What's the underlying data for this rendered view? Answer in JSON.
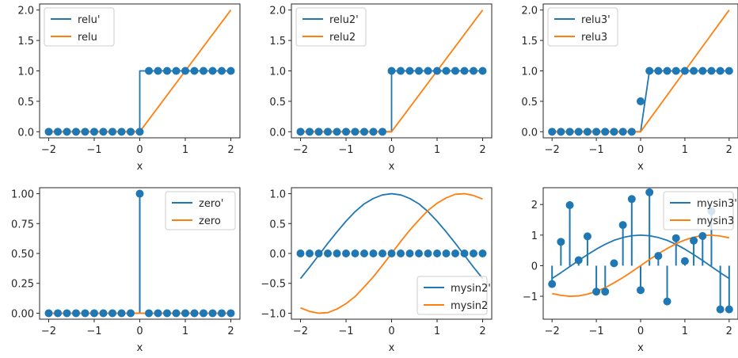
{
  "colors": {
    "derivative": "#1f77b4",
    "function": "#ff7f0e",
    "axis": "#262626"
  },
  "chart_data": [
    {
      "type": "line",
      "panel": "top-left",
      "xlabel": "x",
      "xlim": [
        -2.2,
        2.2
      ],
      "ylim": [
        -0.1,
        2.1
      ],
      "xticks": [
        -2,
        -1,
        0,
        1,
        2
      ],
      "xtick_labels": [
        "−2",
        "−1",
        "0",
        "1",
        "2"
      ],
      "yticks": [
        0.0,
        0.5,
        1.0,
        1.5,
        2.0
      ],
      "ytick_labels": [
        "0.0",
        "0.5",
        "1.0",
        "1.5",
        "2.0"
      ],
      "legend": {
        "loc": "upper-left",
        "entries": [
          {
            "label": "relu'",
            "color": "#1f77b4"
          },
          {
            "label": "relu",
            "color": "#ff7f0e"
          }
        ]
      },
      "series": [
        {
          "name": "relu'",
          "kind": "step",
          "color": "#1f77b4",
          "x": [
            -2,
            0,
            0,
            2
          ],
          "y": [
            0,
            0,
            1,
            1
          ]
        },
        {
          "name": "relu",
          "kind": "line",
          "color": "#ff7f0e",
          "x": [
            -2,
            0,
            2
          ],
          "y": [
            0,
            0,
            2
          ]
        }
      ],
      "points": {
        "color": "#1f77b4",
        "stems": false,
        "x": [
          -2.0,
          -1.8,
          -1.6,
          -1.4,
          -1.2,
          -1.0,
          -0.8,
          -0.6,
          -0.4,
          -0.2,
          0.0,
          0.2,
          0.4,
          0.6,
          0.8,
          1.0,
          1.2,
          1.4,
          1.6,
          1.8,
          2.0
        ],
        "y": [
          0,
          0,
          0,
          0,
          0,
          0,
          0,
          0,
          0,
          0,
          0,
          1,
          1,
          1,
          1,
          1,
          1,
          1,
          1,
          1,
          1
        ]
      }
    },
    {
      "type": "line",
      "panel": "top-middle",
      "xlabel": "x",
      "xlim": [
        -2.2,
        2.2
      ],
      "ylim": [
        -0.1,
        2.1
      ],
      "xticks": [
        -2,
        -1,
        0,
        1,
        2
      ],
      "xtick_labels": [
        "−2",
        "−1",
        "0",
        "1",
        "2"
      ],
      "yticks": [
        0.0,
        0.5,
        1.0,
        1.5,
        2.0
      ],
      "ytick_labels": [
        "0.0",
        "0.5",
        "1.0",
        "1.5",
        "2.0"
      ],
      "legend": {
        "loc": "upper-left",
        "entries": [
          {
            "label": "relu2'",
            "color": "#1f77b4"
          },
          {
            "label": "relu2",
            "color": "#ff7f0e"
          }
        ]
      },
      "series": [
        {
          "name": "relu2'",
          "kind": "step",
          "color": "#1f77b4",
          "x": [
            -2,
            0,
            0,
            2
          ],
          "y": [
            0,
            0,
            1,
            1
          ]
        },
        {
          "name": "relu2",
          "kind": "line",
          "color": "#ff7f0e",
          "x": [
            -2,
            0,
            2
          ],
          "y": [
            0,
            0,
            2
          ]
        }
      ],
      "points": {
        "color": "#1f77b4",
        "stems": false,
        "x": [
          -2.0,
          -1.8,
          -1.6,
          -1.4,
          -1.2,
          -1.0,
          -0.8,
          -0.6,
          -0.4,
          -0.2,
          0.0,
          0.2,
          0.4,
          0.6,
          0.8,
          1.0,
          1.2,
          1.4,
          1.6,
          1.8,
          2.0
        ],
        "y": [
          0,
          0,
          0,
          0,
          0,
          0,
          0,
          0,
          0,
          0,
          1,
          1,
          1,
          1,
          1,
          1,
          1,
          1,
          1,
          1,
          1
        ]
      }
    },
    {
      "type": "line",
      "panel": "top-right",
      "xlabel": "x",
      "xlim": [
        -2.2,
        2.2
      ],
      "ylim": [
        -0.1,
        2.1
      ],
      "xticks": [
        -2,
        -1,
        0,
        1,
        2
      ],
      "xtick_labels": [
        "−2",
        "−1",
        "0",
        "1",
        "2"
      ],
      "yticks": [
        0.0,
        0.5,
        1.0,
        1.5,
        2.0
      ],
      "ytick_labels": [
        "0.0",
        "0.5",
        "1.0",
        "1.5",
        "2.0"
      ],
      "legend": {
        "loc": "upper-left",
        "entries": [
          {
            "label": "relu3'",
            "color": "#1f77b4"
          },
          {
            "label": "relu3",
            "color": "#ff7f0e"
          }
        ]
      },
      "series": [
        {
          "name": "relu3'",
          "kind": "step",
          "color": "#1f77b4",
          "x": [
            -2,
            0,
            0.2,
            2
          ],
          "y": [
            0,
            0,
            1,
            1
          ]
        },
        {
          "name": "relu3",
          "kind": "line",
          "color": "#ff7f0e",
          "x": [
            -2,
            0,
            2
          ],
          "y": [
            0,
            0,
            2
          ]
        }
      ],
      "points": {
        "color": "#1f77b4",
        "stems": false,
        "x": [
          -2.0,
          -1.8,
          -1.6,
          -1.4,
          -1.2,
          -1.0,
          -0.8,
          -0.6,
          -0.4,
          -0.2,
          0.0,
          0.2,
          0.4,
          0.6,
          0.8,
          1.0,
          1.2,
          1.4,
          1.6,
          1.8,
          2.0
        ],
        "y": [
          0,
          0,
          0,
          0,
          0,
          0,
          0,
          0,
          0,
          0,
          0.5,
          1,
          1,
          1,
          1,
          1,
          1,
          1,
          1,
          1,
          1
        ]
      }
    },
    {
      "type": "line",
      "panel": "bottom-left",
      "xlabel": "x",
      "xlim": [
        -2.2,
        2.2
      ],
      "ylim": [
        -0.05,
        1.05
      ],
      "xticks": [
        -2,
        -1,
        0,
        1,
        2
      ],
      "xtick_labels": [
        "−2",
        "−1",
        "0",
        "1",
        "2"
      ],
      "yticks": [
        0.0,
        0.25,
        0.5,
        0.75,
        1.0
      ],
      "ytick_labels": [
        "0.00",
        "0.25",
        "0.50",
        "0.75",
        "1.00"
      ],
      "legend": {
        "loc": "upper-right",
        "entries": [
          {
            "label": "zero'",
            "color": "#1f77b4"
          },
          {
            "label": "zero",
            "color": "#ff7f0e"
          }
        ]
      },
      "series": [
        {
          "name": "zero'",
          "kind": "line",
          "color": "#1f77b4",
          "x": [
            -2,
            0,
            0,
            0,
            2
          ],
          "y": [
            0,
            0,
            1,
            0,
            0
          ]
        },
        {
          "name": "zero",
          "kind": "line",
          "color": "#ff7f0e",
          "x": [
            -2,
            2
          ],
          "y": [
            0,
            0
          ]
        }
      ],
      "points": {
        "color": "#1f77b4",
        "stems": true,
        "x": [
          -2.0,
          -1.8,
          -1.6,
          -1.4,
          -1.2,
          -1.0,
          -0.8,
          -0.6,
          -0.4,
          -0.2,
          0.0,
          0.2,
          0.4,
          0.6,
          0.8,
          1.0,
          1.2,
          1.4,
          1.6,
          1.8,
          2.0
        ],
        "y": [
          0,
          0,
          0,
          0,
          0,
          0,
          0,
          0,
          0,
          0,
          1,
          0,
          0,
          0,
          0,
          0,
          0,
          0,
          0,
          0,
          0
        ]
      }
    },
    {
      "type": "line",
      "panel": "bottom-middle",
      "xlabel": "x",
      "xlim": [
        -2.2,
        2.2
      ],
      "ylim": [
        -1.1,
        1.1
      ],
      "xticks": [
        -2,
        -1,
        0,
        1,
        2
      ],
      "xtick_labels": [
        "−2",
        "−1",
        "0",
        "1",
        "2"
      ],
      "yticks": [
        -1.0,
        -0.5,
        0.0,
        0.5,
        1.0
      ],
      "ytick_labels": [
        "−1.0",
        "−0.5",
        "0.0",
        "0.5",
        "1.0"
      ],
      "legend": {
        "loc": "lower-right",
        "entries": [
          {
            "label": "mysin2'",
            "color": "#1f77b4"
          },
          {
            "label": "mysin2",
            "color": "#ff7f0e"
          }
        ]
      },
      "series": [
        {
          "name": "mysin2'",
          "kind": "line",
          "color": "#1f77b4",
          "x": [
            -2.0,
            -1.8,
            -1.6,
            -1.4,
            -1.2,
            -1.0,
            -0.8,
            -0.6,
            -0.4,
            -0.2,
            0.0,
            0.2,
            0.4,
            0.6,
            0.8,
            1.0,
            1.2,
            1.4,
            1.6,
            1.8,
            2.0
          ],
          "y": [
            -0.42,
            -0.23,
            -0.03,
            0.17,
            0.36,
            0.54,
            0.7,
            0.83,
            0.92,
            0.98,
            1.0,
            0.98,
            0.92,
            0.83,
            0.7,
            0.54,
            0.36,
            0.17,
            -0.03,
            -0.23,
            -0.42
          ]
        },
        {
          "name": "mysin2",
          "kind": "line",
          "color": "#ff7f0e",
          "x": [
            -2.0,
            -1.8,
            -1.6,
            -1.4,
            -1.2,
            -1.0,
            -0.8,
            -0.6,
            -0.4,
            -0.2,
            0.0,
            0.2,
            0.4,
            0.6,
            0.8,
            1.0,
            1.2,
            1.4,
            1.6,
            1.8,
            2.0
          ],
          "y": [
            -0.91,
            -0.97,
            -1.0,
            -0.99,
            -0.93,
            -0.84,
            -0.72,
            -0.56,
            -0.39,
            -0.2,
            0.0,
            0.2,
            0.39,
            0.56,
            0.72,
            0.84,
            0.93,
            0.99,
            1.0,
            0.97,
            0.91
          ]
        }
      ],
      "points": {
        "color": "#1f77b4",
        "stems": true,
        "x": [
          -2.0,
          -1.8,
          -1.6,
          -1.4,
          -1.2,
          -1.0,
          -0.8,
          -0.6,
          -0.4,
          -0.2,
          0.0,
          0.2,
          0.4,
          0.6,
          0.8,
          1.0,
          1.2,
          1.4,
          1.6,
          1.8,
          2.0
        ],
        "y": [
          0,
          0,
          0,
          0,
          0,
          0,
          0,
          0,
          0,
          0,
          0,
          0,
          0,
          0,
          0,
          0,
          0,
          0,
          0,
          0,
          0
        ]
      }
    },
    {
      "type": "line",
      "panel": "bottom-right",
      "xlabel": "x",
      "xlim": [
        -2.2,
        2.2
      ],
      "ylim": [
        -1.75,
        2.55
      ],
      "xticks": [
        -2,
        -1,
        0,
        1,
        2
      ],
      "xtick_labels": [
        "−2",
        "−1",
        "0",
        "1",
        "2"
      ],
      "yticks": [
        -1,
        0,
        1,
        2
      ],
      "ytick_labels": [
        "−1",
        "0",
        "1",
        "2"
      ],
      "legend": {
        "loc": "upper-right",
        "entries": [
          {
            "label": "mysin3'",
            "color": "#1f77b4"
          },
          {
            "label": "mysin3",
            "color": "#ff7f0e"
          }
        ]
      },
      "series": [
        {
          "name": "mysin3'",
          "kind": "line",
          "color": "#1f77b4",
          "x": [
            -2.0,
            -1.8,
            -1.6,
            -1.4,
            -1.2,
            -1.0,
            -0.8,
            -0.6,
            -0.4,
            -0.2,
            0.0,
            0.2,
            0.4,
            0.6,
            0.8,
            1.0,
            1.2,
            1.4,
            1.6,
            1.8,
            2.0
          ],
          "y": [
            -0.42,
            -0.23,
            -0.03,
            0.17,
            0.36,
            0.54,
            0.7,
            0.83,
            0.92,
            0.98,
            1.0,
            0.98,
            0.92,
            0.83,
            0.7,
            0.54,
            0.36,
            0.17,
            -0.03,
            -0.23,
            -0.42
          ]
        },
        {
          "name": "mysin3",
          "kind": "line",
          "color": "#ff7f0e",
          "x": [
            -2.0,
            -1.8,
            -1.6,
            -1.4,
            -1.2,
            -1.0,
            -0.8,
            -0.6,
            -0.4,
            -0.2,
            0.0,
            0.2,
            0.4,
            0.6,
            0.8,
            1.0,
            1.2,
            1.4,
            1.6,
            1.8,
            2.0
          ],
          "y": [
            -0.91,
            -0.97,
            -1.0,
            -0.99,
            -0.93,
            -0.84,
            -0.72,
            -0.56,
            -0.39,
            -0.2,
            0.0,
            0.2,
            0.39,
            0.56,
            0.72,
            0.84,
            0.93,
            0.99,
            1.0,
            0.97,
            0.91
          ]
        }
      ],
      "points": {
        "color": "#1f77b4",
        "stems": true,
        "x": [
          -2.0,
          -1.8,
          -1.6,
          -1.4,
          -1.2,
          -1.0,
          -0.8,
          -0.6,
          -0.4,
          -0.2,
          0.0,
          0.2,
          0.4,
          0.6,
          0.8,
          1.0,
          1.2,
          1.4,
          1.6,
          1.8,
          2.0
        ],
        "y": [
          -0.6,
          0.78,
          1.98,
          0.18,
          0.96,
          -0.85,
          -0.85,
          0.08,
          1.33,
          2.18,
          -0.8,
          2.4,
          0.32,
          -1.17,
          0.9,
          0.15,
          0.82,
          0.97,
          1.78,
          -1.43,
          -1.43
        ]
      }
    }
  ]
}
